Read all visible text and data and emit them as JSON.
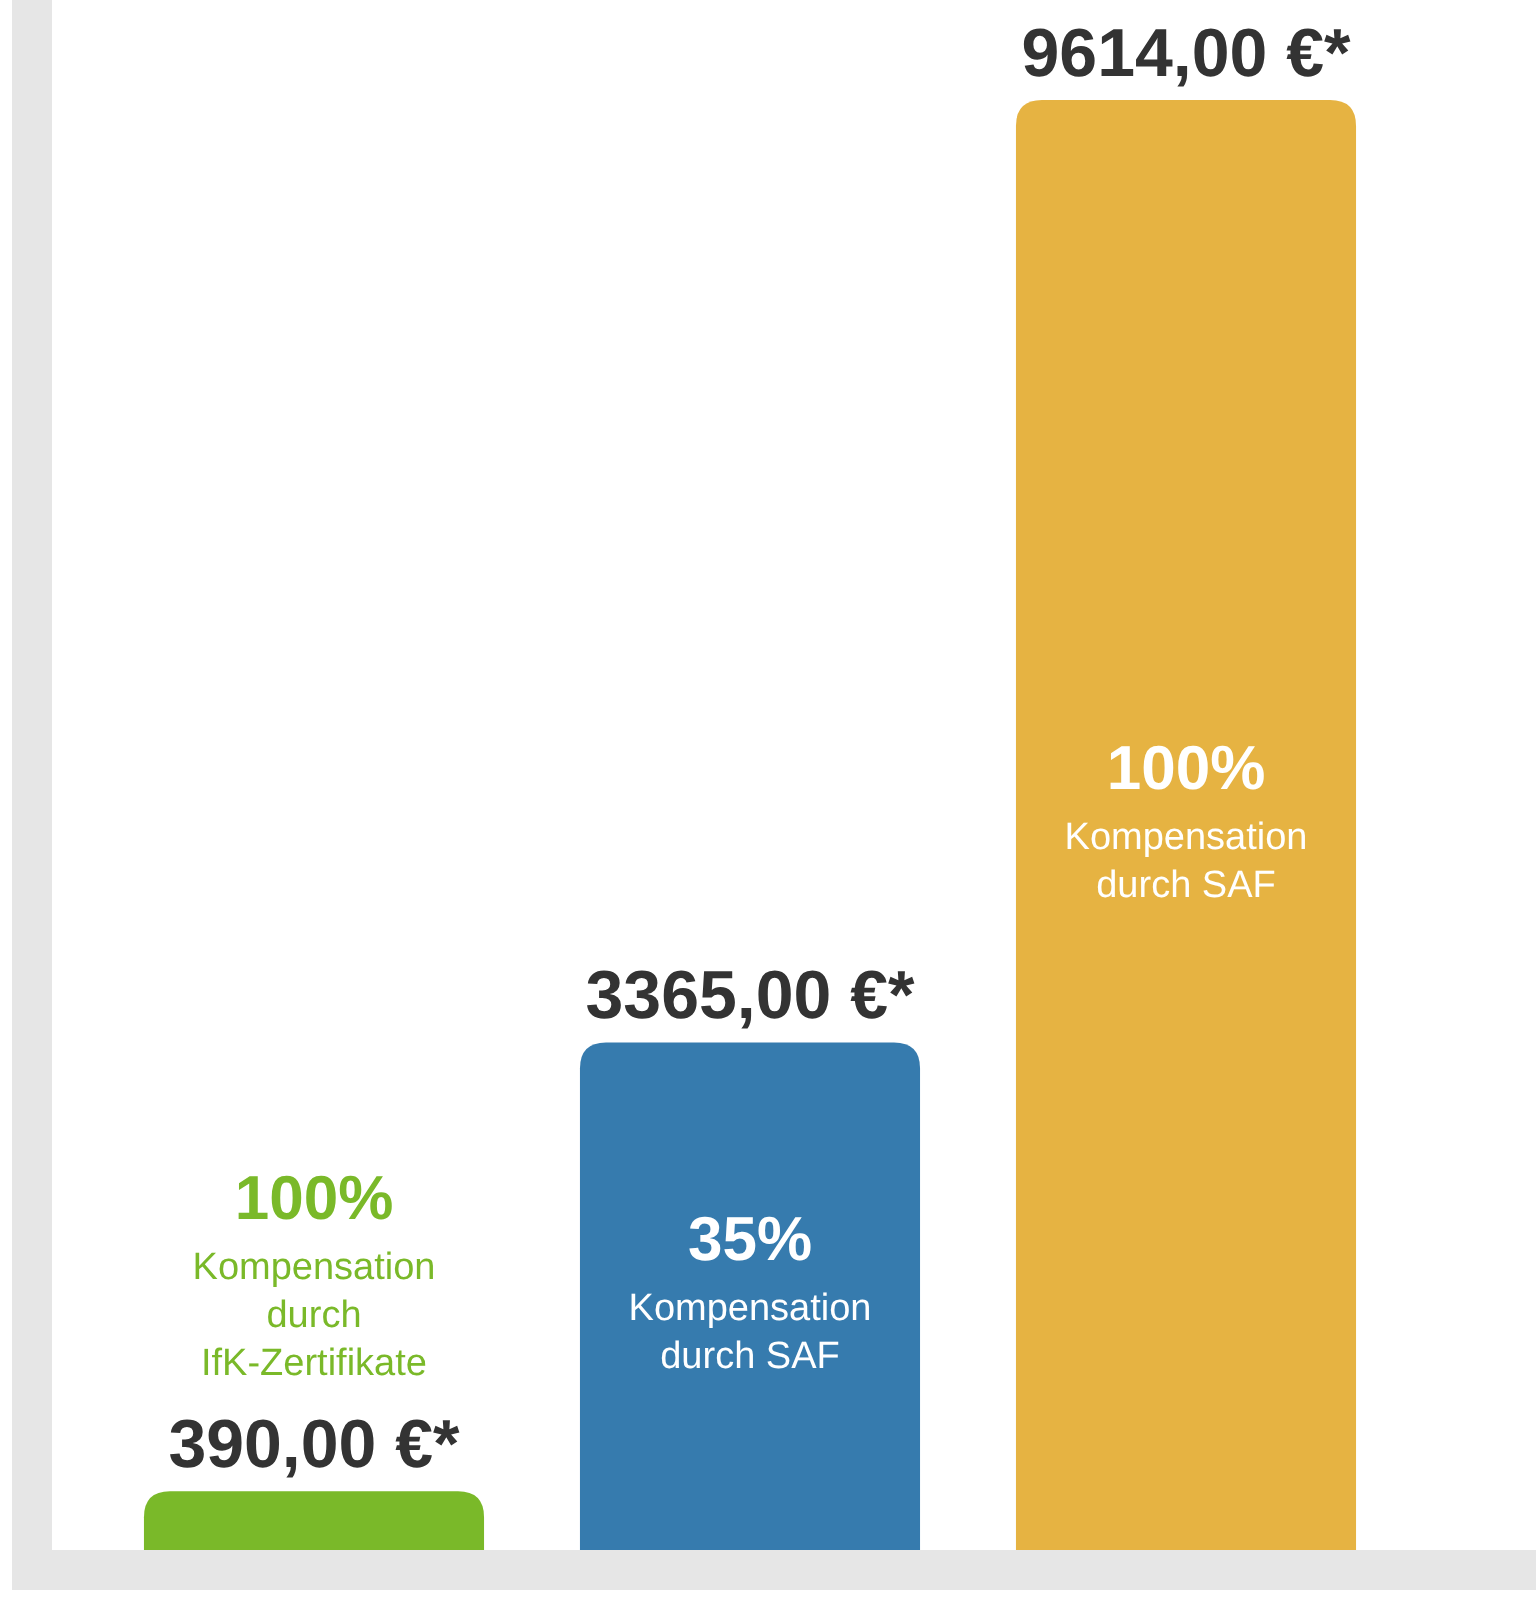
{
  "chart_data": {
    "type": "bar",
    "categories": [
      null,
      null,
      null
    ],
    "values": [
      390,
      3365,
      9614
    ],
    "colors": [
      "#7ab929",
      "#367bae",
      "#e6b342"
    ],
    "value_labels": [
      "390,00 €*",
      "3365,00 €*",
      "9614,00 €*"
    ],
    "annotations": [
      "100%\nKompensation\ndurch\nIfK-Zertifikate",
      "35%\nKompensation\ndurch SAF",
      "100%\nKompensation\ndurch SAF"
    ]
  }
}
